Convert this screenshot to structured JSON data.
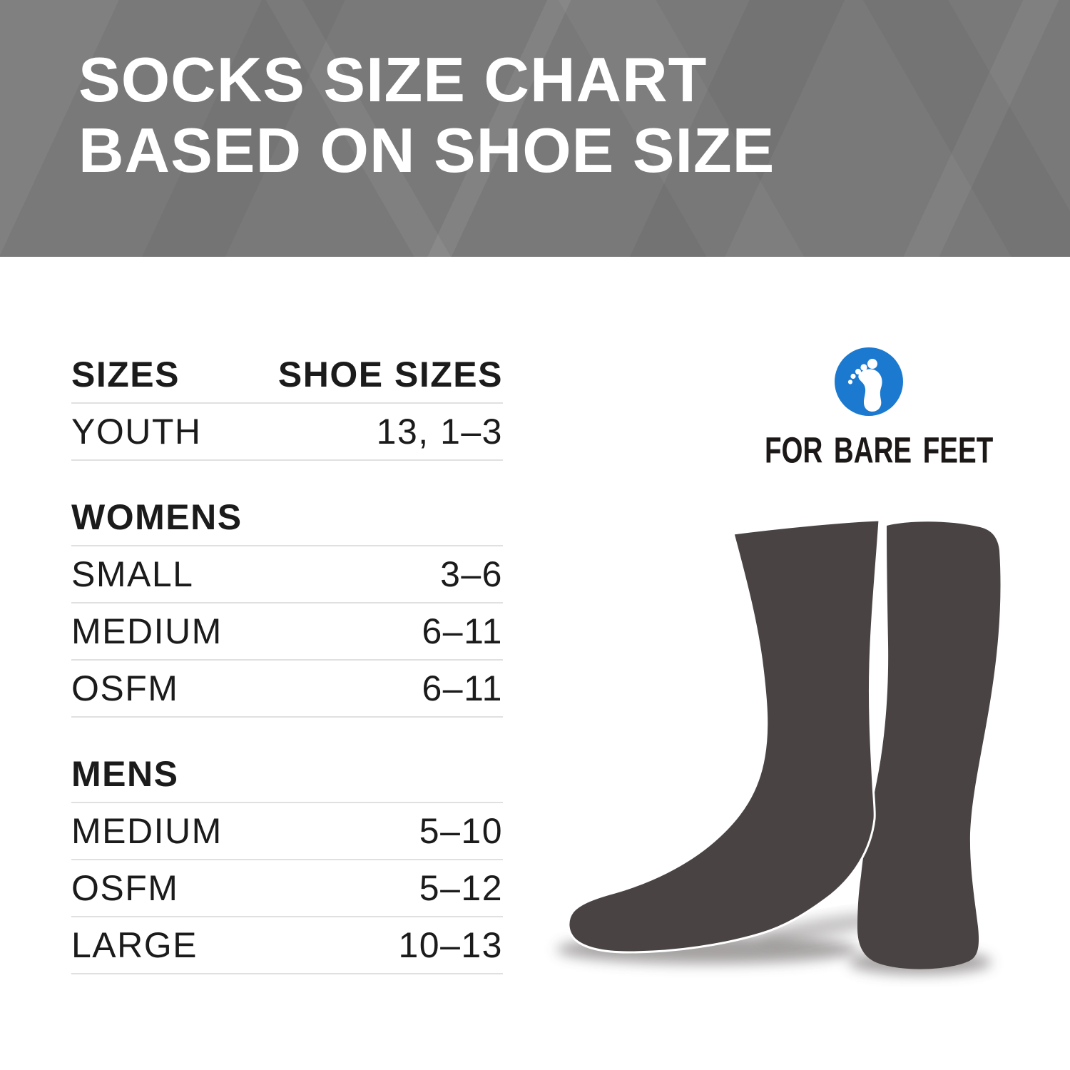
{
  "banner": {
    "title_line1": "SOCKS SIZE CHART",
    "title_line2": "BASED ON SHOE SIZE",
    "bg": "#797979",
    "text_color": "#ffffff"
  },
  "table": {
    "columns": [
      "SIZES",
      "SHOE SIZES"
    ],
    "sections": [
      {
        "header": null,
        "rows": [
          {
            "label": "YOUTH",
            "value": "13, 1–3"
          }
        ]
      },
      {
        "header": "WOMENS",
        "rows": [
          {
            "label": "SMALL",
            "value": "3–6"
          },
          {
            "label": "MEDIUM",
            "value": "6–11"
          },
          {
            "label": "OSFM",
            "value": "6–11"
          }
        ]
      },
      {
        "header": "MENS",
        "rows": [
          {
            "label": "MEDIUM",
            "value": "5–10"
          },
          {
            "label": "OSFM",
            "value": "5–12"
          },
          {
            "label": "LARGE",
            "value": "10–13"
          }
        ]
      }
    ],
    "divider_color": "#e0e0e0",
    "text_color": "#1b1b1b"
  },
  "logo": {
    "brand": "FOR BARE FEET",
    "icon": "footprint-icon",
    "circle_color": "#1b79cf",
    "text_color": "#1d1818"
  },
  "illustration": {
    "name": "pair-of-crew-socks",
    "sock_color": "#4a4344",
    "shadow_color": "#4b4545"
  },
  "chart_data": {
    "type": "table",
    "title": "SOCKS SIZE CHART BASED ON SHOE SIZE",
    "columns": [
      "SIZES",
      "SHOE SIZES"
    ],
    "rows": [
      {
        "section": "",
        "size": "YOUTH",
        "shoe_sizes": "13, 1–3"
      },
      {
        "section": "WOMENS",
        "size": "SMALL",
        "shoe_sizes": "3–6"
      },
      {
        "section": "WOMENS",
        "size": "MEDIUM",
        "shoe_sizes": "6–11"
      },
      {
        "section": "WOMENS",
        "size": "OSFM",
        "shoe_sizes": "6–11"
      },
      {
        "section": "MENS",
        "size": "MEDIUM",
        "shoe_sizes": "5–10"
      },
      {
        "section": "MENS",
        "size": "OSFM",
        "shoe_sizes": "5–12"
      },
      {
        "section": "MENS",
        "size": "LARGE",
        "shoe_sizes": "10–13"
      }
    ]
  }
}
